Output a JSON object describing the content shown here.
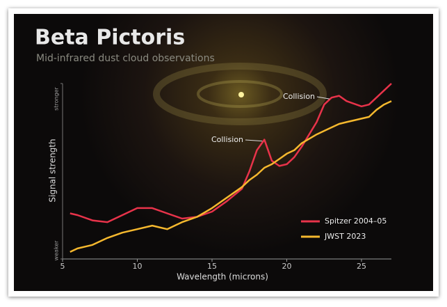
{
  "chart_data": {
    "type": "line",
    "title": "Beta Pictoris",
    "subtitle": "Mid-infrared dust cloud observations",
    "x_label": "Wavelength (microns)",
    "y_label": "Signal strength",
    "xlim": [
      5,
      27
    ],
    "xticks": [
      5,
      10,
      15,
      20,
      25
    ],
    "ylim": [
      0,
      1
    ],
    "yticks": [
      {
        "value": 0,
        "label": "weaker"
      },
      {
        "value": 1,
        "label": "stronger"
      }
    ],
    "legend": "lower right",
    "annotations": [
      "Collision",
      "Collision"
    ],
    "x": [
      5.5,
      6,
      7,
      8,
      9,
      10,
      11,
      12,
      13,
      14,
      15,
      16,
      17,
      17.5,
      18,
      18.5,
      19,
      19.5,
      20,
      20.5,
      21,
      22,
      22.5,
      23,
      23.5,
      24,
      25,
      25.5,
      26,
      26.5,
      27
    ],
    "series": [
      {
        "name": "Spitzer 2004–05",
        "color": "#e8334a",
        "values": [
          0.26,
          0.25,
          0.22,
          0.21,
          0.25,
          0.29,
          0.29,
          0.26,
          0.23,
          0.24,
          0.27,
          0.33,
          0.4,
          0.5,
          0.62,
          0.68,
          0.56,
          0.53,
          0.54,
          0.58,
          0.64,
          0.78,
          0.88,
          0.92,
          0.93,
          0.9,
          0.87,
          0.88,
          0.92,
          0.96,
          1.0
        ]
      },
      {
        "name": "JWST 2023",
        "color": "#f5b82e",
        "values": [
          0.04,
          0.06,
          0.08,
          0.12,
          0.15,
          0.17,
          0.19,
          0.17,
          0.21,
          0.24,
          0.29,
          0.35,
          0.41,
          0.45,
          0.48,
          0.52,
          0.54,
          0.57,
          0.6,
          0.62,
          0.66,
          0.71,
          0.73,
          0.75,
          0.77,
          0.78,
          0.8,
          0.81,
          0.85,
          0.88,
          0.9
        ]
      }
    ]
  }
}
